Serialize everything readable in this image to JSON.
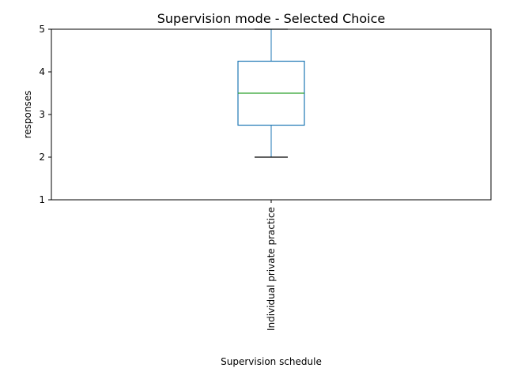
{
  "chart_data": {
    "type": "box",
    "title": "Supervision mode - Selected Choice",
    "xlabel": "Supervision schedule",
    "ylabel": "responses",
    "ylim": [
      1,
      5
    ],
    "yticks": [
      1,
      2,
      3,
      4,
      5
    ],
    "categories": [
      "Individual private practice"
    ],
    "boxes": [
      {
        "category": "Individual private practice",
        "whisker_low": 2,
        "q1": 2.75,
        "median": 3.5,
        "q3": 4.25,
        "whisker_high": 5
      }
    ],
    "grid": false,
    "colors": {
      "box": "#1f77b4",
      "median": "#2ca02c",
      "cap": "#000000"
    }
  }
}
